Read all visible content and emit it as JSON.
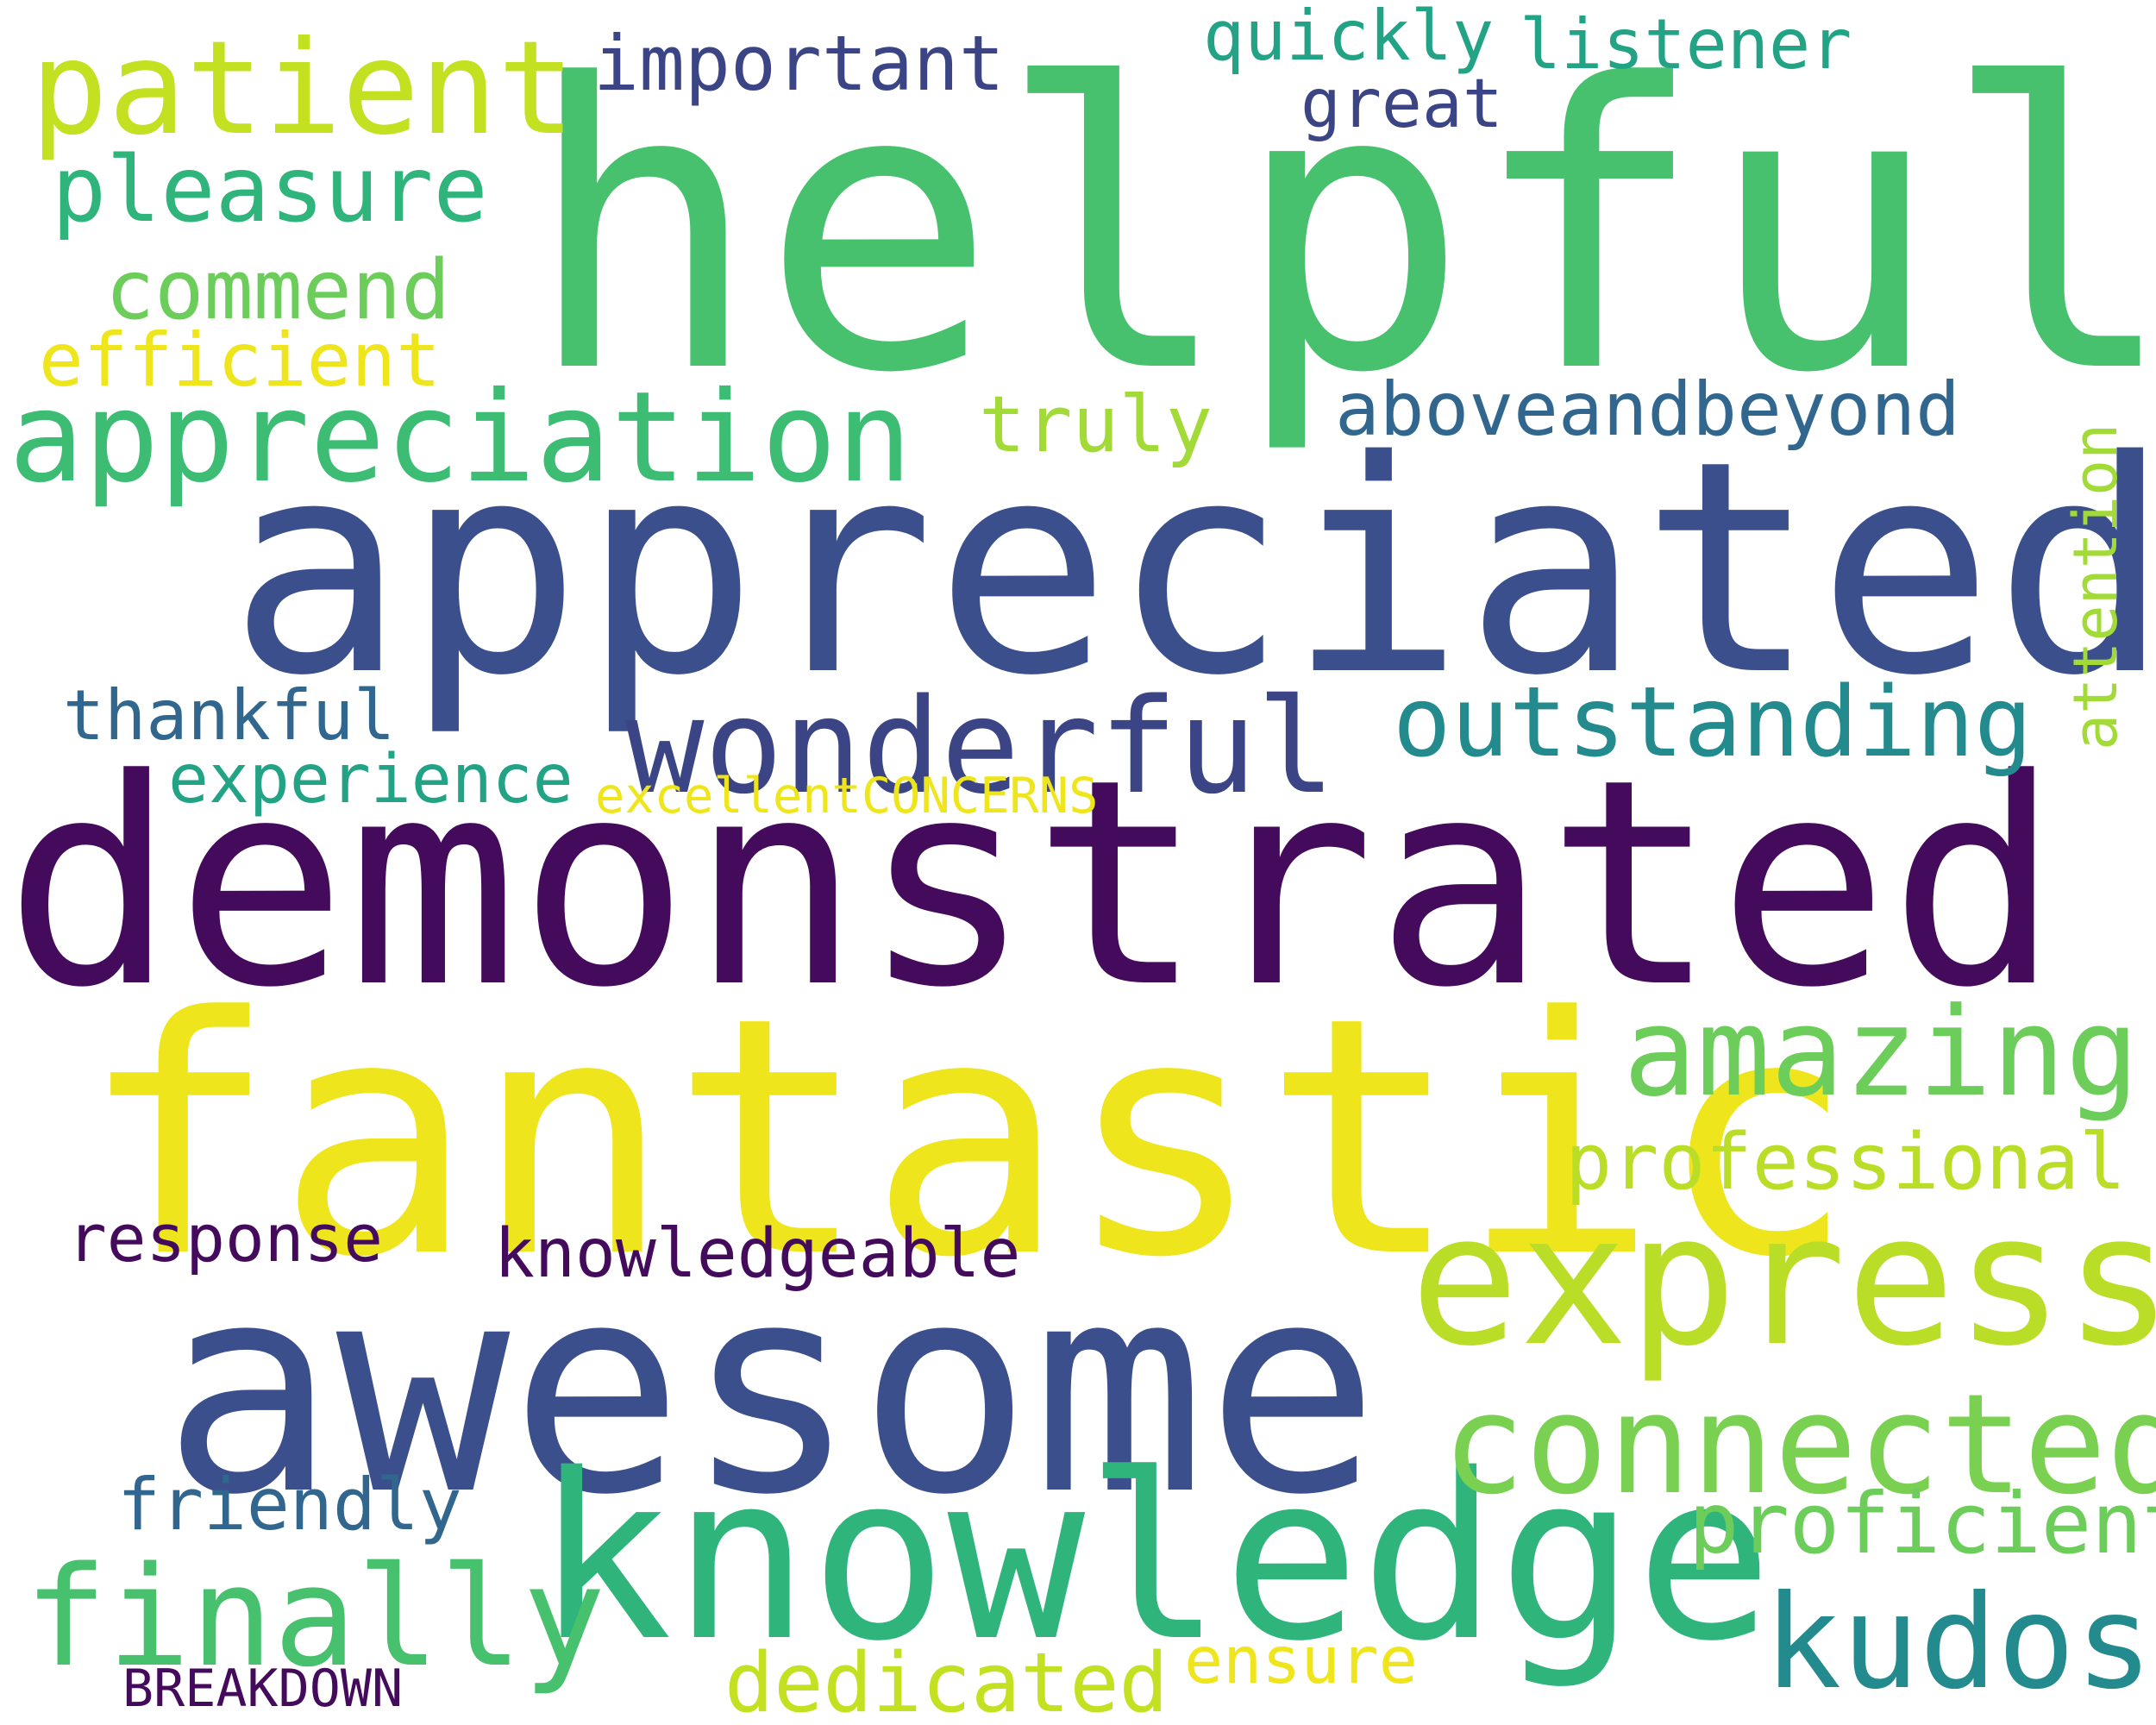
{
  "words": {
    "helpful": "helpful",
    "appreciated": "appreciated",
    "demonstrated": "demonstrated",
    "fantastic": "fantastic",
    "awesome": "awesome",
    "knowledge": "knowledge",
    "patient": "patient",
    "pleasure": "pleasure",
    "commend": "commend",
    "efficient": "efficient",
    "appreciation": "appreciation",
    "important": "important",
    "quickly": "quickly",
    "listener": "listener",
    "great": "great",
    "truly": "truly",
    "aboveandbeyond": "aboveandbeyond",
    "attention": "attention",
    "wonderful": "wonderful",
    "outstanding": "outstanding",
    "thankful": "thankful",
    "experience": "experience",
    "excellent_concerns": "excellentCONCERNS",
    "amazing": "amazing",
    "professional": "professional",
    "express": "express",
    "response": "response",
    "knowledgeable": "knowledgeable",
    "connected": "connected",
    "friendly": "friendly",
    "proficient": "proficient",
    "finally": "finally",
    "kudos": "kudos",
    "ensure": "ensure",
    "dedicated": "dedicated",
    "breakdown": "BREAKDOWN"
  }
}
